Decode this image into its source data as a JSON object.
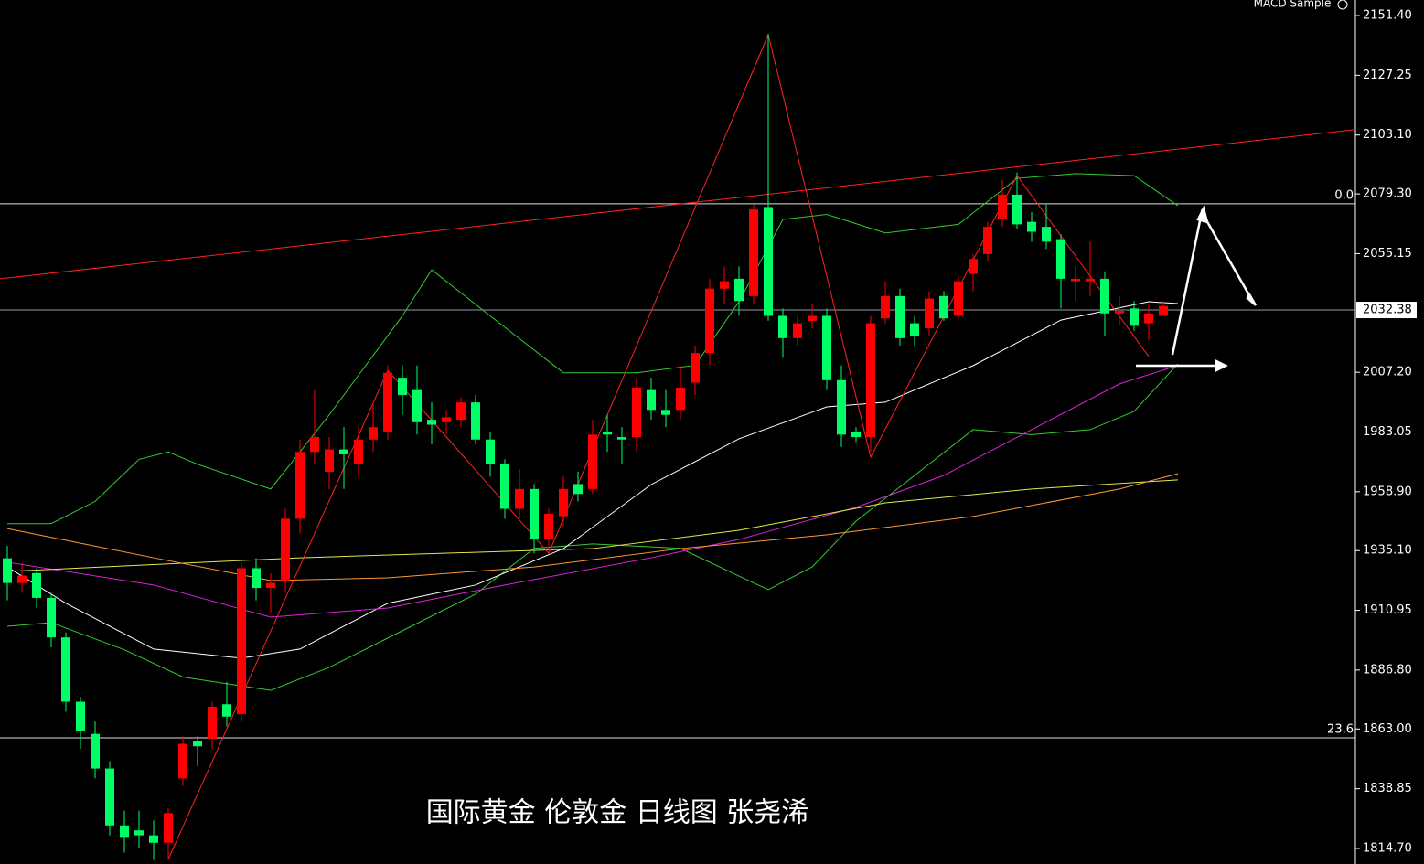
{
  "chart_data": {
    "type": "candlestick",
    "title": "国际黄金 伦敦金 日线图 张尧浠",
    "indicator": "MACD Sample",
    "ylim": [
      1808.4,
      2157.7
    ],
    "yticks": [
      {
        "value": 2151.4,
        "label": "2151.40"
      },
      2127.25,
      {
        "value": 2103.1,
        "label": "2103.10"
      },
      {
        "value": 2079.3,
        "label": "2079.30"
      },
      2055.15,
      {
        "value": 2007.2,
        "label": "2007.20"
      },
      1983.05,
      {
        "value": 1958.9,
        "label": "1958.90"
      },
      {
        "value": 1935.1,
        "label": "1935.10"
      },
      1910.95,
      {
        "value": 1886.8,
        "label": "1886.80"
      },
      {
        "value": 1863.0,
        "label": "1863.00"
      },
      1838.85,
      {
        "value": 1814.7,
        "label": "1814.70"
      }
    ],
    "last_price": 2032.38,
    "up_color": "#ff0000",
    "down_color": "#00ff66",
    "levels": [
      {
        "value": 2075.3,
        "label": "0.0"
      },
      {
        "value": 1859.4,
        "label": "23.6"
      }
    ],
    "candles": [
      {
        "open": 1932,
        "high": 1937,
        "low": 1915,
        "close": 1922
      },
      {
        "open": 1922,
        "high": 1930,
        "low": 1918,
        "close": 1925
      },
      {
        "open": 1926,
        "high": 1928,
        "low": 1912,
        "close": 1916
      },
      {
        "open": 1916,
        "high": 1918,
        "low": 1896,
        "close": 1900
      },
      {
        "open": 1900,
        "high": 1902,
        "low": 1870,
        "close": 1874
      },
      {
        "open": 1874,
        "high": 1876,
        "low": 1855,
        "close": 1862
      },
      {
        "open": 1861,
        "high": 1866,
        "low": 1843,
        "close": 1847
      },
      {
        "open": 1847,
        "high": 1850,
        "low": 1820,
        "close": 1824
      },
      {
        "open": 1824,
        "high": 1830,
        "low": 1813,
        "close": 1819
      },
      {
        "open": 1822,
        "high": 1830,
        "low": 1815,
        "close": 1820
      },
      {
        "open": 1820,
        "high": 1826,
        "low": 1810,
        "close": 1817
      },
      {
        "open": 1817,
        "high": 1831,
        "low": 1810,
        "close": 1829
      },
      {
        "open": 1843,
        "high": 1860,
        "low": 1840,
        "close": 1857
      },
      {
        "open": 1858,
        "high": 1860,
        "low": 1848,
        "close": 1856
      },
      {
        "open": 1859,
        "high": 1874,
        "low": 1855,
        "close": 1872
      },
      {
        "open": 1873,
        "high": 1882,
        "low": 1864,
        "close": 1868
      },
      {
        "open": 1869,
        "high": 1930,
        "low": 1866,
        "close": 1928
      },
      {
        "open": 1928,
        "high": 1932,
        "low": 1915,
        "close": 1920
      },
      {
        "open": 1920,
        "high": 1926,
        "low": 1910,
        "close": 1922
      },
      {
        "open": 1923,
        "high": 1952,
        "low": 1918,
        "close": 1948
      },
      {
        "open": 1948,
        "high": 1980,
        "low": 1942,
        "close": 1975
      },
      {
        "open": 1975,
        "high": 2000,
        "low": 1970,
        "close": 1981
      },
      {
        "open": 1967,
        "high": 1981,
        "low": 1960,
        "close": 1976
      },
      {
        "open": 1976,
        "high": 1985,
        "low": 1960,
        "close": 1974
      },
      {
        "open": 1970,
        "high": 1985,
        "low": 1965,
        "close": 1980
      },
      {
        "open": 1980,
        "high": 1995,
        "low": 1975,
        "close": 1985
      },
      {
        "open": 1983,
        "high": 2010,
        "low": 1980,
        "close": 2007
      },
      {
        "open": 2005,
        "high": 2010,
        "low": 1990,
        "close": 1998
      },
      {
        "open": 2000,
        "high": 2010,
        "low": 1982,
        "close": 1987
      },
      {
        "open": 1988,
        "high": 1995,
        "low": 1978,
        "close": 1986
      },
      {
        "open": 1987,
        "high": 1992,
        "low": 1982,
        "close": 1989
      },
      {
        "open": 1988,
        "high": 1997,
        "low": 1985,
        "close": 1995
      },
      {
        "open": 1995,
        "high": 1998,
        "low": 1978,
        "close": 1980
      },
      {
        "open": 1980,
        "high": 1983,
        "low": 1965,
        "close": 1970
      },
      {
        "open": 1970,
        "high": 1972,
        "low": 1948,
        "close": 1952
      },
      {
        "open": 1952,
        "high": 1968,
        "low": 1948,
        "close": 1960
      },
      {
        "open": 1960,
        "high": 1962,
        "low": 1934,
        "close": 1940
      },
      {
        "open": 1940,
        "high": 1952,
        "low": 1935,
        "close": 1950
      },
      {
        "open": 1949,
        "high": 1965,
        "low": 1945,
        "close": 1960
      },
      {
        "open": 1962,
        "high": 1967,
        "low": 1955,
        "close": 1958
      },
      {
        "open": 1960,
        "high": 1988,
        "low": 1958,
        "close": 1982
      },
      {
        "open": 1983,
        "high": 1990,
        "low": 1975,
        "close": 1982
      },
      {
        "open": 1981,
        "high": 1985,
        "low": 1970,
        "close": 1980
      },
      {
        "open": 1981,
        "high": 2005,
        "low": 1975,
        "close": 2001
      },
      {
        "open": 2000,
        "high": 2005,
        "low": 1988,
        "close": 1992
      },
      {
        "open": 1992,
        "high": 2000,
        "low": 1985,
        "close": 1990
      },
      {
        "open": 1992,
        "high": 2010,
        "low": 1988,
        "close": 2001
      },
      {
        "open": 2003,
        "high": 2018,
        "low": 1998,
        "close": 2015
      },
      {
        "open": 2015,
        "high": 2045,
        "low": 2010,
        "close": 2041
      },
      {
        "open": 2041,
        "high": 2050,
        "low": 2035,
        "close": 2044
      },
      {
        "open": 2045,
        "high": 2050,
        "low": 2030,
        "close": 2036
      },
      {
        "open": 2038,
        "high": 2075,
        "low": 2035,
        "close": 2073
      },
      {
        "open": 2074,
        "high": 2144,
        "low": 2028,
        "close": 2030
      },
      {
        "open": 2030,
        "high": 2033,
        "low": 2013,
        "close": 2021
      },
      {
        "open": 2021,
        "high": 2030,
        "low": 2018,
        "close": 2027
      },
      {
        "open": 2028,
        "high": 2035,
        "low": 2025,
        "close": 2030
      },
      {
        "open": 2030,
        "high": 2033,
        "low": 2000,
        "close": 2004
      },
      {
        "open": 2004,
        "high": 2010,
        "low": 1977,
        "close": 1982
      },
      {
        "open": 1983,
        "high": 1985,
        "low": 1979,
        "close": 1981
      },
      {
        "open": 1981,
        "high": 2030,
        "low": 1975,
        "close": 2027
      },
      {
        "open": 2029,
        "high": 2044,
        "low": 2027,
        "close": 2038
      },
      {
        "open": 2038,
        "high": 2041,
        "low": 2018,
        "close": 2021
      },
      {
        "open": 2027,
        "high": 2030,
        "low": 2018,
        "close": 2022
      },
      {
        "open": 2025,
        "high": 2040,
        "low": 2022,
        "close": 2037
      },
      {
        "open": 2038,
        "high": 2040,
        "low": 2028,
        "close": 2029
      },
      {
        "open": 2030,
        "high": 2046,
        "low": 2029,
        "close": 2044
      },
      {
        "open": 2047,
        "high": 2055,
        "low": 2040,
        "close": 2053
      },
      {
        "open": 2055,
        "high": 2068,
        "low": 2052,
        "close": 2066
      },
      {
        "open": 2069,
        "high": 2085,
        "low": 2066,
        "close": 2079
      },
      {
        "open": 2079,
        "high": 2088,
        "low": 2065,
        "close": 2067
      },
      {
        "open": 2068,
        "high": 2072,
        "low": 2060,
        "close": 2064
      },
      {
        "open": 2066,
        "high": 2075,
        "low": 2057,
        "close": 2060
      },
      {
        "open": 2061,
        "high": 2063,
        "low": 2033,
        "close": 2045
      },
      {
        "open": 2044,
        "high": 2050,
        "low": 2036,
        "close": 2045
      },
      {
        "open": 2044,
        "high": 2060,
        "low": 2038,
        "close": 2045
      },
      {
        "open": 2045,
        "high": 2048,
        "low": 2022,
        "close": 2031
      },
      {
        "open": 2031,
        "high": 2038,
        "low": 2026,
        "close": 2032
      },
      {
        "open": 2033,
        "high": 2036,
        "low": 2024,
        "close": 2026
      },
      {
        "open": 2027,
        "high": 2035,
        "low": 2020,
        "close": 2031
      },
      {
        "open": 2030,
        "high": 2036,
        "low": 2030,
        "close": 2034
      }
    ],
    "series": [
      {
        "color": "#33cc33",
        "x": [
          0,
          3,
          6,
          9,
          11,
          13,
          18,
          22,
          27,
          29,
          33,
          38,
          43,
          47,
          50,
          53,
          56,
          60,
          65,
          69,
          73,
          77,
          80
        ],
        "values": [
          1946,
          1946,
          1955,
          1972,
          1975,
          1970,
          1960,
          1990,
          2030,
          2048.6,
          2030,
          2007,
          2007,
          2010,
          2035.7,
          2069,
          2071,
          2063.5,
          2067,
          2085.6,
          2087.5,
          2086.7,
          2074.5
        ]
      },
      {
        "color": "#33cc33",
        "x": [
          0,
          3,
          8,
          12,
          18,
          22,
          27,
          32,
          36,
          40,
          46,
          50,
          52,
          55,
          58,
          62,
          66,
          70,
          74,
          77,
          80
        ],
        "values": [
          1904.5,
          1906,
          1895,
          1884,
          1878.6,
          1887.9,
          1902.7,
          1917.5,
          1936,
          1937.8,
          1936,
          1924.8,
          1919.3,
          1928.5,
          1947,
          1965.5,
          1984,
          1982,
          1984,
          1991.4,
          2010.6
        ]
      },
      {
        "color": "#ffffff",
        "x": [
          0,
          4,
          10,
          16,
          20,
          26,
          32,
          38,
          44,
          50,
          56,
          60,
          66,
          72,
          78,
          80
        ],
        "values": [
          1928.5,
          1913.8,
          1895.3,
          1891.6,
          1895.3,
          1913.8,
          1921.2,
          1935.9,
          1961.8,
          1980.3,
          1993.2,
          1995.1,
          2009.9,
          2028.3,
          2035.7,
          2035
        ]
      },
      {
        "color": "#dd22dd",
        "x": [
          0,
          10,
          18,
          26,
          34,
          44,
          50,
          58,
          64,
          70,
          76,
          80
        ],
        "values": [
          1930.4,
          1921.2,
          1908.2,
          1911.9,
          1921.2,
          1932.2,
          1939.6,
          1952.6,
          1965.5,
          1984,
          2002.5,
          2010
        ]
      },
      {
        "color": "#e6e64c",
        "x": [
          0,
          20,
          40,
          50,
          60,
          70,
          80
        ],
        "values": [
          1926.7,
          1932.2,
          1935.9,
          1943.3,
          1954.4,
          1960,
          1963.7
        ]
      },
      {
        "color": "#ff9933",
        "x": [
          0,
          10,
          18,
          26,
          36,
          46,
          56,
          66,
          76,
          80
        ],
        "values": [
          1944,
          1932.2,
          1923,
          1924.1,
          1928.5,
          1935.9,
          1941.5,
          1948.9,
          1960,
          1966.2
        ]
      },
      {
        "color": "#ff2222",
        "x": [
          11,
          26,
          37,
          52,
          59,
          69,
          78
        ],
        "values": [
          1810.3,
          2008,
          1934,
          2143.7,
          1972.9,
          2086.7,
          2013.6
        ]
      },
      {
        "color": "#ff2222",
        "x": [
          -0.5,
          92
        ],
        "values": [
          2045.0,
          2105.2
        ]
      }
    ]
  }
}
